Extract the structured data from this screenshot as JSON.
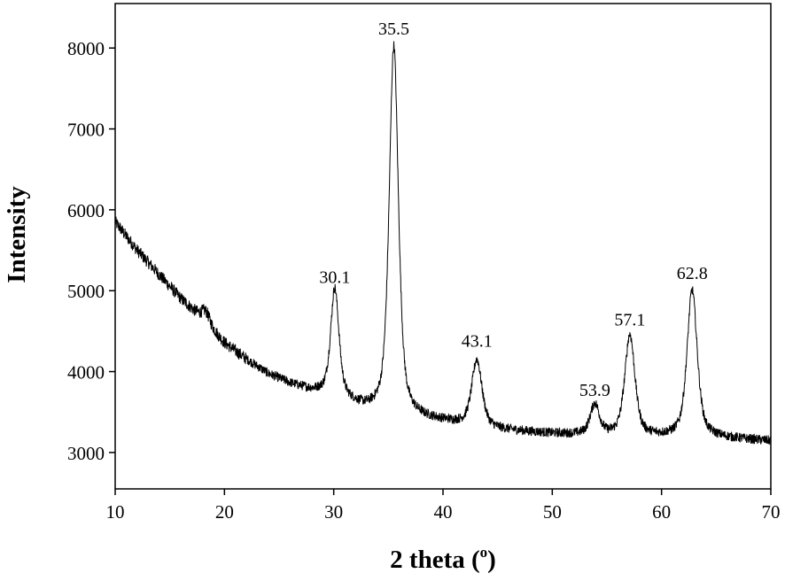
{
  "chart_data": {
    "type": "line",
    "title": "",
    "xlabel_main": "2 theta (",
    "xlabel_sup": "o",
    "xlabel_end": ")",
    "ylabel": "Intensity",
    "xlim": [
      10,
      70
    ],
    "ylim": [
      2550,
      8550
    ],
    "xticks": [
      10,
      20,
      30,
      40,
      50,
      60,
      70
    ],
    "yticks": [
      3000,
      4000,
      5000,
      6000,
      7000,
      8000
    ],
    "grid": false,
    "line_color": "#000000",
    "background": {
      "points": [
        [
          10,
          5850
        ],
        [
          12,
          5500
        ],
        [
          14,
          5200
        ],
        [
          16,
          4900
        ],
        [
          18,
          4650
        ],
        [
          20,
          4350
        ],
        [
          22,
          4150
        ],
        [
          24,
          3970
        ],
        [
          26,
          3850
        ],
        [
          28,
          3760
        ],
        [
          30,
          3700
        ],
        [
          33,
          3520
        ],
        [
          36,
          3440
        ],
        [
          40,
          3380
        ],
        [
          45,
          3280
        ],
        [
          50,
          3230
        ],
        [
          55,
          3200
        ],
        [
          60,
          3190
        ],
        [
          65,
          3180
        ],
        [
          70,
          3140
        ]
      ],
      "noise_amplitude": 60
    },
    "peaks": [
      {
        "x": 18.3,
        "height": 140,
        "fwhm": 0.9
      },
      {
        "x": 30.1,
        "height": 1320,
        "fwhm": 0.9
      },
      {
        "x": 35.5,
        "height": 4570,
        "fwhm": 1.0
      },
      {
        "x": 43.1,
        "height": 820,
        "fwhm": 1.1
      },
      {
        "x": 53.9,
        "height": 380,
        "fwhm": 1.0
      },
      {
        "x": 57.1,
        "height": 1250,
        "fwhm": 1.1
      },
      {
        "x": 62.8,
        "height": 1820,
        "fwhm": 1.1
      }
    ],
    "annotations": [
      {
        "text": "30.1",
        "x": 30.1,
        "y": 5010
      },
      {
        "text": "35.5",
        "x": 35.5,
        "y": 8080
      },
      {
        "text": "43.1",
        "x": 43.1,
        "y": 4220
      },
      {
        "text": "53.9",
        "x": 53.9,
        "y": 3610
      },
      {
        "text": "57.1",
        "x": 57.1,
        "y": 4480
      },
      {
        "text": "62.8",
        "x": 62.8,
        "y": 5060
      }
    ]
  }
}
